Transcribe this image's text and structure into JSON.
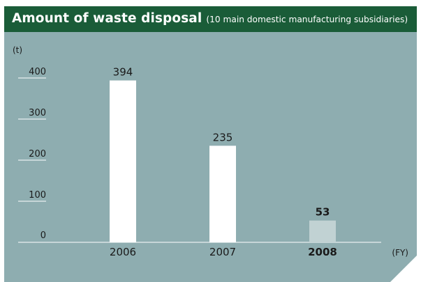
{
  "header": {
    "title": "Amount of waste disposal",
    "subtitle": "(10 main domestic manufacturing subsidiaries)"
  },
  "colors": {
    "header_bg": "#1a5c38",
    "plot_bg": "#8eadb0",
    "bar": "#ffffff",
    "bar_highlight": "#c1d2d3",
    "axis": "#ffffff"
  },
  "chart_data": {
    "type": "bar",
    "title": "Amount of waste disposal",
    "subtitle": "(10 main domestic manufacturing subsidiaries)",
    "y_unit": "(t)",
    "x_unit": "(FY)",
    "categories": [
      "2006",
      "2007",
      "2008"
    ],
    "values": [
      394,
      235,
      53
    ],
    "highlight": "2008",
    "ylim": [
      0,
      400
    ],
    "yticks": [
      0,
      100,
      200,
      300,
      400
    ],
    "grid": false
  }
}
